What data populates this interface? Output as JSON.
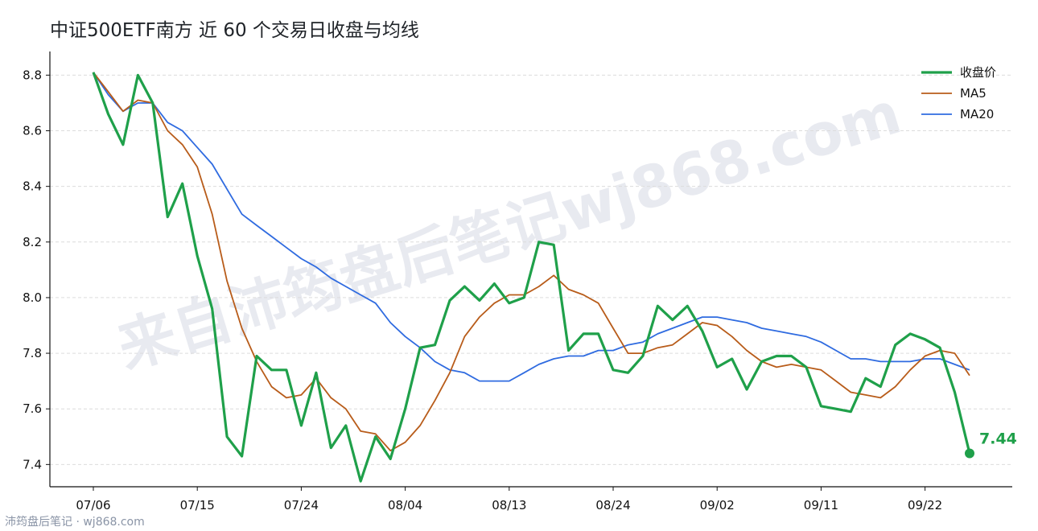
{
  "chart_data": {
    "type": "line",
    "title": "中证500ETF南方 近 60 个交易日收盘与均线",
    "xlabel": "",
    "ylabel": "",
    "ylim": [
      7.32,
      8.885
    ],
    "y_ticks": [
      7.4,
      7.6,
      7.8,
      8.0,
      8.2,
      8.4,
      8.6,
      8.8
    ],
    "y_tick_labels": [
      "7.4",
      "7.6",
      "7.8",
      "8.0",
      "8.2",
      "8.4",
      "8.6",
      "8.8"
    ],
    "x_ticks": [
      {
        "index": 0,
        "label": "07/06"
      },
      {
        "index": 7,
        "label": "07/15"
      },
      {
        "index": 14,
        "label": "07/24"
      },
      {
        "index": 21,
        "label": "08/04"
      },
      {
        "index": 28,
        "label": "08/13"
      },
      {
        "index": 35,
        "label": "08/24"
      },
      {
        "index": 42,
        "label": "09/02"
      },
      {
        "index": 49,
        "label": "09/11"
      },
      {
        "index": 56,
        "label": "09/22"
      }
    ],
    "grid": "horizontal-dashed",
    "legend_position": "top-right",
    "series": [
      {
        "name": "收盘价",
        "color": "#1fa04a",
        "values": [
          8.81,
          8.66,
          8.55,
          8.8,
          8.7,
          8.29,
          8.41,
          8.15,
          7.96,
          7.5,
          7.43,
          7.79,
          7.74,
          7.74,
          7.54,
          7.73,
          7.46,
          7.54,
          7.34,
          7.5,
          7.42,
          7.6,
          7.82,
          7.83,
          7.99,
          8.04,
          7.99,
          8.05,
          7.98,
          8.0,
          8.2,
          8.19,
          7.81,
          7.87,
          7.87,
          7.74,
          7.73,
          7.79,
          7.97,
          7.92,
          7.97,
          7.88,
          7.75,
          7.78,
          7.67,
          7.77,
          7.79,
          7.79,
          7.75,
          7.61,
          7.6,
          7.59,
          7.71,
          7.68,
          7.83,
          7.87,
          7.85,
          7.82,
          7.66,
          7.44
        ]
      },
      {
        "name": "MA5",
        "color": "#b85c1a",
        "values": [
          8.81,
          8.74,
          8.67,
          8.71,
          8.7,
          8.6,
          8.55,
          8.47,
          8.3,
          8.06,
          7.89,
          7.77,
          7.68,
          7.64,
          7.65,
          7.71,
          7.64,
          7.6,
          7.52,
          7.51,
          7.45,
          7.48,
          7.54,
          7.63,
          7.73,
          7.86,
          7.93,
          7.98,
          8.01,
          8.01,
          8.04,
          8.08,
          8.03,
          8.01,
          7.98,
          7.89,
          7.8,
          7.8,
          7.82,
          7.83,
          7.87,
          7.91,
          7.9,
          7.86,
          7.81,
          7.77,
          7.75,
          7.76,
          7.75,
          7.74,
          7.7,
          7.66,
          7.65,
          7.64,
          7.68,
          7.74,
          7.79,
          7.81,
          7.8,
          7.72
        ]
      },
      {
        "name": "MA20",
        "color": "#2f6be0",
        "values": [
          8.81,
          8.73,
          8.67,
          8.7,
          8.7,
          8.63,
          8.6,
          8.54,
          8.48,
          8.39,
          8.3,
          8.26,
          8.22,
          8.18,
          8.14,
          8.11,
          8.07,
          8.04,
          8.01,
          7.98,
          7.91,
          7.86,
          7.82,
          7.77,
          7.74,
          7.73,
          7.7,
          7.7,
          7.7,
          7.73,
          7.76,
          7.78,
          7.79,
          7.79,
          7.81,
          7.81,
          7.83,
          7.84,
          7.87,
          7.89,
          7.91,
          7.93,
          7.93,
          7.92,
          7.91,
          7.89,
          7.88,
          7.87,
          7.86,
          7.84,
          7.81,
          7.78,
          7.78,
          7.77,
          7.77,
          7.77,
          7.78,
          7.78,
          7.76,
          7.74
        ]
      }
    ],
    "end_label": "7.44",
    "watermark": "来自沛筠盘后笔记wj868.com",
    "footer": "沛筠盘后笔记 · wj868.com"
  }
}
